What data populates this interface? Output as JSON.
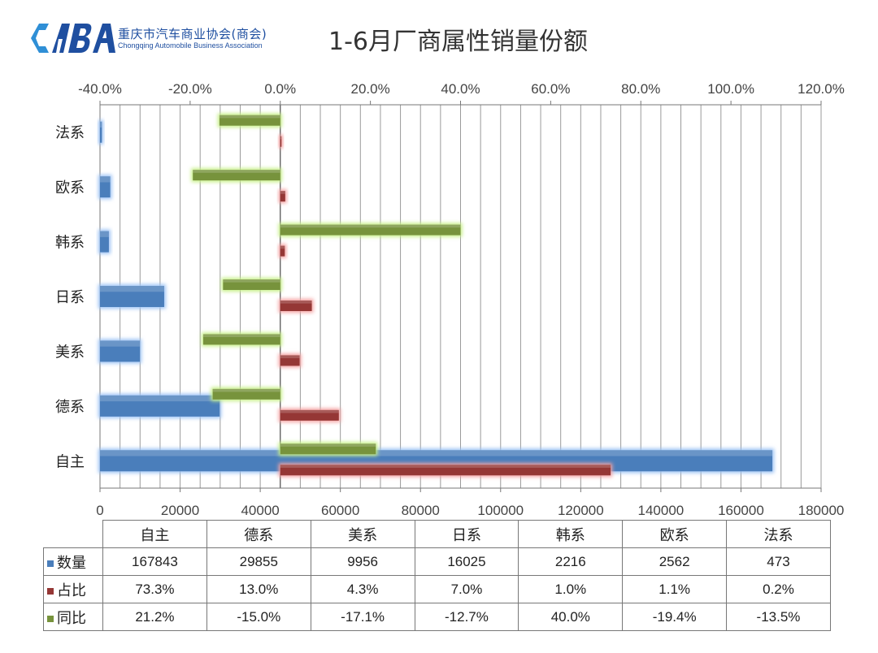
{
  "logo": {
    "mark_text": "CABA",
    "name_cn": "重庆市汽车商业协会(商会)",
    "name_en": "Chongqing Automobile Business Association"
  },
  "title": "1-6月厂商属性销量份额",
  "chart_data": {
    "type": "bar",
    "orientation": "horizontal",
    "categories": [
      "自主",
      "德系",
      "美系",
      "日系",
      "韩系",
      "欧系",
      "法系"
    ],
    "series": [
      {
        "name": "数量",
        "axis": "bottom",
        "color": "#4a7ebb",
        "glow": "#9cc3f5",
        "values": [
          167843,
          29855,
          9956,
          16025,
          2216,
          2562,
          473
        ]
      },
      {
        "name": "占比",
        "axis": "top",
        "color": "#953735",
        "glow": "#f5a3a3",
        "values": [
          73.3,
          13.0,
          4.3,
          7.0,
          1.0,
          1.1,
          0.2
        ]
      },
      {
        "name": "同比",
        "axis": "top",
        "color": "#77933c",
        "glow": "#c6ef86",
        "values": [
          21.2,
          -15.0,
          -17.1,
          -12.7,
          40.0,
          -19.4,
          -13.5
        ]
      }
    ],
    "bottom_axis": {
      "min": 0,
      "max": 180000,
      "ticks": [
        "0",
        "20000",
        "40000",
        "60000",
        "80000",
        "100000",
        "120000",
        "140000",
        "160000",
        "180000"
      ]
    },
    "top_axis": {
      "min": -40,
      "max": 120,
      "ticks": [
        "-40.0%",
        "-20.0%",
        "0.0%",
        "20.0%",
        "40.0%",
        "60.0%",
        "80.0%",
        "100.0%",
        "120.0%"
      ]
    },
    "grid": true
  },
  "table": {
    "columns": [
      "自主",
      "德系",
      "美系",
      "日系",
      "韩系",
      "欧系",
      "法系"
    ],
    "rows": [
      {
        "label": "数量",
        "color": "#4a7ebb",
        "values": [
          "167843",
          "29855",
          "9956",
          "16025",
          "2216",
          "2562",
          "473"
        ]
      },
      {
        "label": "占比",
        "color": "#953735",
        "values": [
          "73.3%",
          "13.0%",
          "4.3%",
          "7.0%",
          "1.0%",
          "1.1%",
          "0.2%"
        ]
      },
      {
        "label": "同比",
        "color": "#77933c",
        "values": [
          "21.2%",
          "-15.0%",
          "-17.1%",
          "-12.7%",
          "40.0%",
          "-19.4%",
          "-13.5%"
        ]
      }
    ]
  }
}
